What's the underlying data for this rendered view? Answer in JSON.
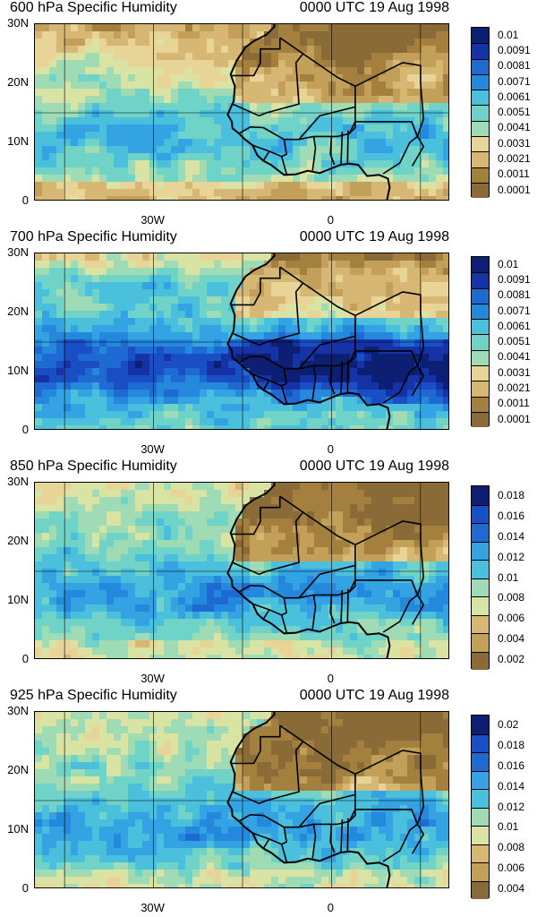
{
  "colors": [
    "#8a6a36",
    "#a4803f",
    "#c2a05a",
    "#d6b774",
    "#e8d497",
    "#d9e3a3",
    "#9fdcb6",
    "#6fd3c8",
    "#4ac0dc",
    "#33a3e3",
    "#2488dc",
    "#1e6ad2",
    "#1a4ec4",
    "#1533a6",
    "#0c1f73"
  ],
  "map_features": {
    "land": "#d3a966",
    "coastline": "#000000"
  },
  "panels": [
    {
      "title_left": "600 hPa Specific Humidity",
      "title_right": "0000 UTC 19 Aug 1998",
      "y_ticks": [
        "30N",
        "20N",
        "10N",
        "0"
      ],
      "x_ticks": [
        "30W",
        "0"
      ],
      "colorbar_labels": [
        "0.01",
        "0.0091",
        "0.0081",
        "0.0071",
        "0.0061",
        "0.0051",
        "0.0041",
        "0.0031",
        "0.0021",
        "0.0011",
        "0.0001"
      ],
      "humidity_scheme": "dry-north-moist-band"
    },
    {
      "title_left": "700 hPa Specific Humidity",
      "title_right": "0000 UTC 19 Aug 1998",
      "y_ticks": [
        "30N",
        "20N",
        "10N",
        "0"
      ],
      "x_ticks": [
        "30W",
        "0"
      ],
      "colorbar_labels": [
        "0.01",
        "0.0091",
        "0.0081",
        "0.0071",
        "0.0061",
        "0.0051",
        "0.0041",
        "0.0031",
        "0.0021",
        "0.0011",
        "0.0001"
      ],
      "humidity_scheme": "very-moist"
    },
    {
      "title_left": "850 hPa Specific Humidity",
      "title_right": "0000 UTC 19 Aug 1998",
      "y_ticks": [
        "30N",
        "20N",
        "10N",
        "0"
      ],
      "x_ticks": [
        "30W",
        "0"
      ],
      "colorbar_labels": [
        "0.018",
        "0.016",
        "0.014",
        "0.012",
        "0.01",
        "0.008",
        "0.006",
        "0.004",
        "0.002"
      ],
      "humidity_scheme": "moderate"
    },
    {
      "title_left": "925 hPa Specific Humidity",
      "title_right": "0000 UTC 19 Aug 1998",
      "y_ticks": [
        "30N",
        "20N",
        "10N",
        "0"
      ],
      "x_ticks": [
        "30W",
        "0"
      ],
      "colorbar_labels": [
        "0.02",
        "0.018",
        "0.016",
        "0.014",
        "0.012",
        "0.01",
        "0.008",
        "0.006",
        "0.004"
      ],
      "humidity_scheme": "moderate"
    }
  ]
}
